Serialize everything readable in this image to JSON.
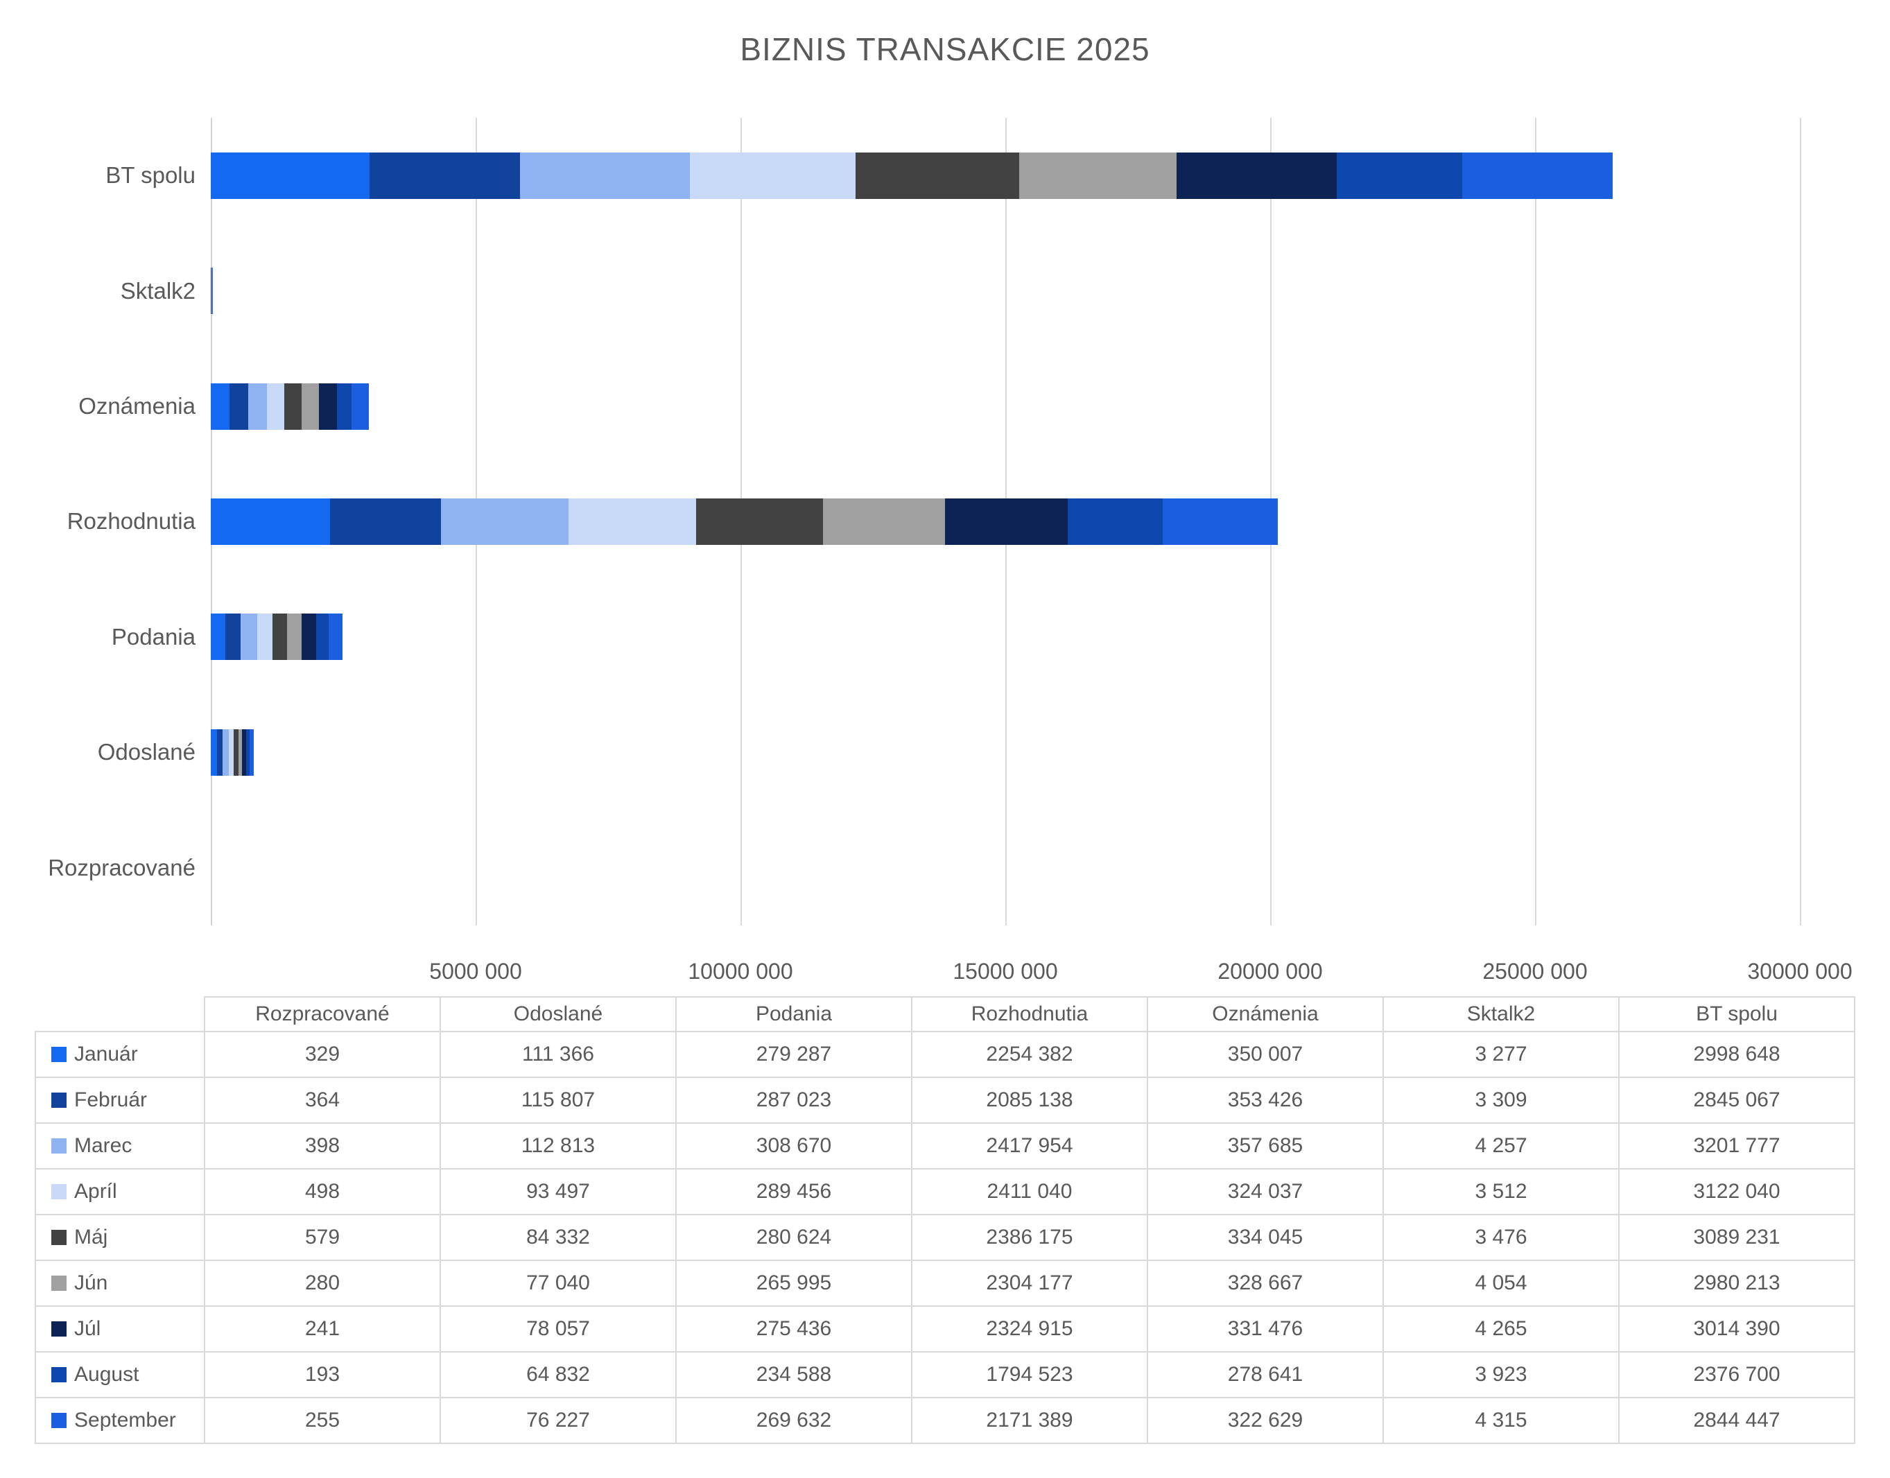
{
  "chart_data": {
    "type": "bar",
    "orientation": "horizontal",
    "stacked": true,
    "title": "BIZNIS TRANSAKCIE 2025",
    "xlabel": "",
    "ylabel": "",
    "xlim": [
      0,
      30000000
    ],
    "grid": true,
    "x_tick_labels": [
      "5000 000",
      "10000 000",
      "15000 000",
      "20000 000",
      "25000 000",
      "30000 000"
    ],
    "x_tick_values": [
      5000000,
      10000000,
      15000000,
      20000000,
      25000000,
      30000000
    ],
    "categories": [
      "BT spolu",
      "Sktalk2",
      "Oznámenia",
      "Rozhodnutia",
      "Podania",
      "Odoslané",
      "Rozpracované"
    ],
    "legend_position": "table-below-left",
    "series": [
      {
        "name": "Január",
        "color": "#1568F0",
        "values": [
          2998648,
          3277,
          350007,
          2254382,
          279287,
          111366,
          329
        ]
      },
      {
        "name": "Február",
        "color": "#11439D",
        "values": [
          2845067,
          3309,
          353426,
          2085138,
          287023,
          115807,
          364
        ]
      },
      {
        "name": "Marec",
        "color": "#8FB2F0",
        "values": [
          3201777,
          4257,
          357685,
          2417954,
          308670,
          112813,
          398
        ]
      },
      {
        "name": "Apríl",
        "color": "#C7D9F6",
        "values": [
          3122040,
          3512,
          324037,
          2411040,
          289456,
          93497,
          498
        ]
      },
      {
        "name": "Máj",
        "color": "#424242",
        "values": [
          3089231,
          3476,
          334045,
          2386175,
          280624,
          84332,
          579
        ]
      },
      {
        "name": "Jún",
        "color": "#A0A0A0",
        "values": [
          2980213,
          4054,
          328667,
          2304177,
          265995,
          77040,
          280
        ]
      },
      {
        "name": "Júl",
        "color": "#0D2356",
        "values": [
          3014390,
          4265,
          331476,
          2324915,
          275436,
          78057,
          241
        ]
      },
      {
        "name": "August",
        "color": "#0D47AC",
        "values": [
          2376700,
          3923,
          278641,
          1794523,
          234588,
          64832,
          193
        ]
      },
      {
        "name": "September",
        "color": "#1C5FDE",
        "values": [
          2844447,
          4315,
          322629,
          2171389,
          269632,
          76227,
          255
        ]
      }
    ]
  },
  "table": {
    "corner_label": "",
    "columns": [
      "Rozpracované",
      "Odoslané",
      "Podania",
      "Rozhodnutia",
      "Oznámenia",
      "Sktalk2",
      "BT spolu"
    ],
    "rows": [
      {
        "month": "Január",
        "color": "#1568F0",
        "cells": [
          "329",
          "111 366",
          "279 287",
          "2254 382",
          "350 007",
          "3 277",
          "2998 648"
        ]
      },
      {
        "month": "Február",
        "color": "#11439D",
        "cells": [
          "364",
          "115 807",
          "287 023",
          "2085 138",
          "353 426",
          "3 309",
          "2845 067"
        ]
      },
      {
        "month": "Marec",
        "color": "#8FB2F0",
        "cells": [
          "398",
          "112 813",
          "308 670",
          "2417 954",
          "357 685",
          "4 257",
          "3201 777"
        ]
      },
      {
        "month": "Apríl",
        "color": "#C7D9F6",
        "cells": [
          "498",
          "93 497",
          "289 456",
          "2411 040",
          "324 037",
          "3 512",
          "3122 040"
        ]
      },
      {
        "month": "Máj",
        "color": "#424242",
        "cells": [
          "579",
          "84 332",
          "280 624",
          "2386 175",
          "334 045",
          "3 476",
          "3089 231"
        ]
      },
      {
        "month": "Jún",
        "color": "#A0A0A0",
        "cells": [
          "280",
          "77 040",
          "265 995",
          "2304 177",
          "328 667",
          "4 054",
          "2980 213"
        ]
      },
      {
        "month": "Júl",
        "color": "#0D2356",
        "cells": [
          "241",
          "78 057",
          "275 436",
          "2324 915",
          "331 476",
          "4 265",
          "3014 390"
        ]
      },
      {
        "month": "August",
        "color": "#0D47AC",
        "cells": [
          "193",
          "64 832",
          "234 588",
          "1794 523",
          "278 641",
          "3 923",
          "2376 700"
        ]
      },
      {
        "month": "September",
        "color": "#1C5FDE",
        "cells": [
          "255",
          "76 227",
          "269 632",
          "2171 389",
          "322 629",
          "4 315",
          "2844 447"
        ]
      }
    ]
  }
}
